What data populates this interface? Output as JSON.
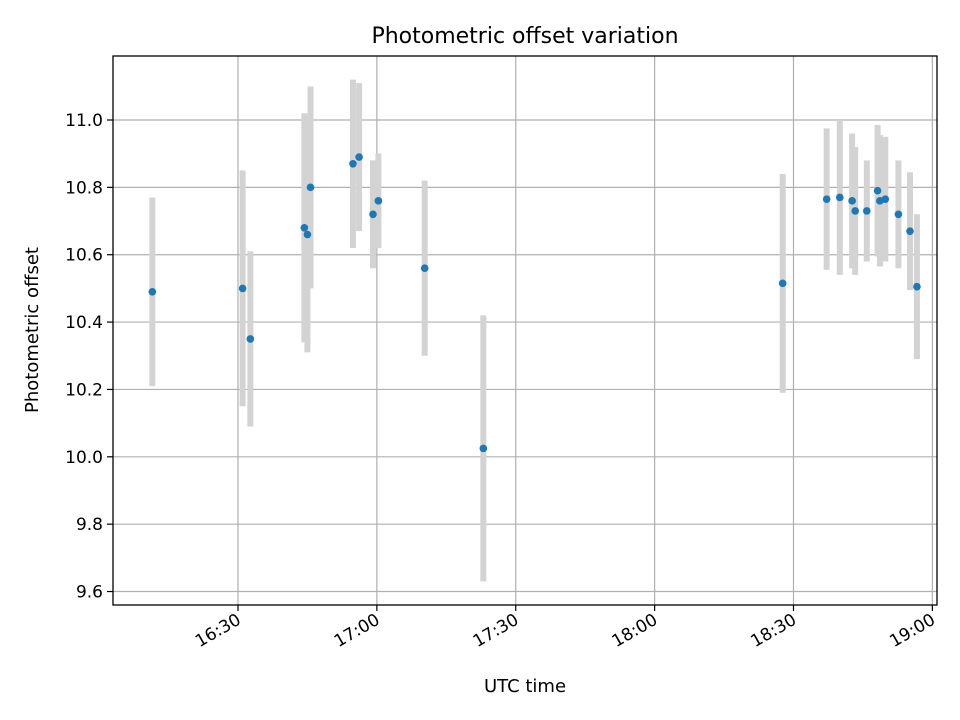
{
  "chart_data": {
    "type": "scatter",
    "title": "Photometric offset variation",
    "xlabel": "UTC time",
    "ylabel": "Photometric offset",
    "xlim": [
      "16:03",
      "19:01"
    ],
    "ylim": [
      9.56,
      11.19
    ],
    "grid": true,
    "x_ticks": [
      "16:30",
      "17:00",
      "17:30",
      "18:00",
      "18:30",
      "19:00"
    ],
    "y_ticks": [
      "9.6",
      "9.8",
      "10.0",
      "10.2",
      "10.4",
      "10.6",
      "10.8",
      "11.0"
    ],
    "errorbar_color": "#d3d3d3",
    "point_color": "#1f77b4",
    "points": [
      {
        "time": "16:11:30",
        "y": 10.49,
        "yerr": 0.28
      },
      {
        "time": "16:31:00",
        "y": 10.5,
        "yerr": 0.35
      },
      {
        "time": "16:32:40",
        "y": 10.35,
        "yerr": 0.26
      },
      {
        "time": "16:44:20",
        "y": 10.68,
        "yerr": 0.34
      },
      {
        "time": "16:45:00",
        "y": 10.66,
        "yerr": 0.35
      },
      {
        "time": "16:45:40",
        "y": 10.8,
        "yerr": 0.3
      },
      {
        "time": "16:54:50",
        "y": 10.87,
        "yerr": 0.25
      },
      {
        "time": "16:56:10",
        "y": 10.89,
        "yerr": 0.22
      },
      {
        "time": "16:59:10",
        "y": 10.72,
        "yerr": 0.16
      },
      {
        "time": "17:00:20",
        "y": 10.76,
        "yerr": 0.14
      },
      {
        "time": "17:10:20",
        "y": 10.56,
        "yerr": 0.26
      },
      {
        "time": "17:23:00",
        "y": 10.025,
        "yerr": 0.395
      },
      {
        "time": "18:27:40",
        "y": 10.515,
        "yerr": 0.325
      },
      {
        "time": "18:37:10",
        "y": 10.765,
        "yerr": 0.21
      },
      {
        "time": "18:40:00",
        "y": 10.77,
        "yerr": 0.23
      },
      {
        "time": "18:42:40",
        "y": 10.76,
        "yerr": 0.2
      },
      {
        "time": "18:43:20",
        "y": 10.73,
        "yerr": 0.19
      },
      {
        "time": "18:45:50",
        "y": 10.73,
        "yerr": 0.15
      },
      {
        "time": "18:48:10",
        "y": 10.79,
        "yerr": 0.195
      },
      {
        "time": "18:48:40",
        "y": 10.76,
        "yerr": 0.195
      },
      {
        "time": "18:49:50",
        "y": 10.765,
        "yerr": 0.185
      },
      {
        "time": "18:52:40",
        "y": 10.72,
        "yerr": 0.16
      },
      {
        "time": "18:55:10",
        "y": 10.67,
        "yerr": 0.175
      },
      {
        "time": "18:56:40",
        "y": 10.505,
        "yerr": 0.215
      }
    ]
  }
}
